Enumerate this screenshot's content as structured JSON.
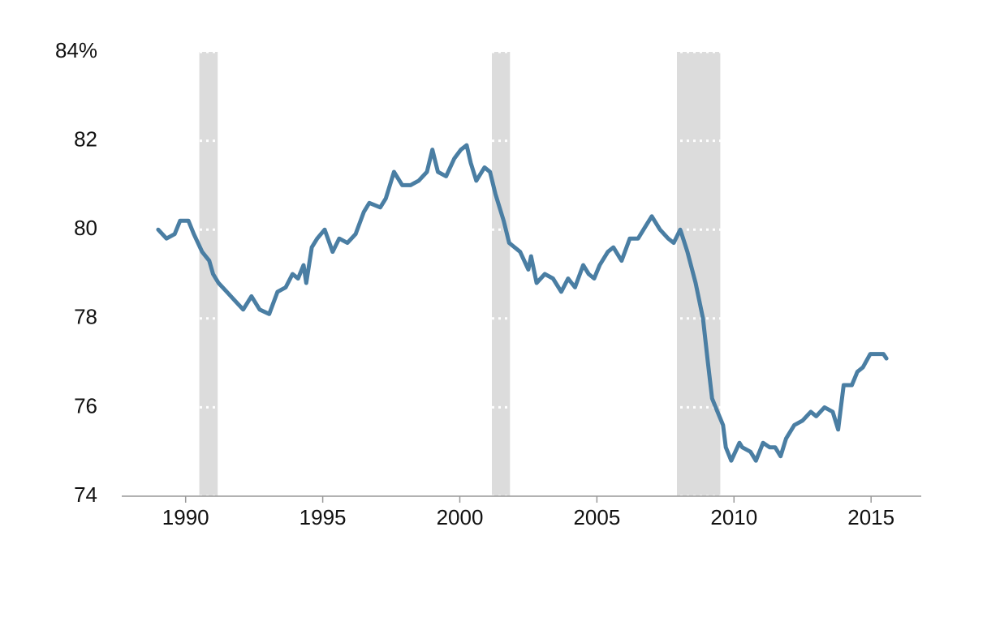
{
  "chart_data": {
    "type": "line",
    "x": [
      1989.0,
      1989.3,
      1989.6,
      1989.8,
      1990.1,
      1990.3,
      1990.6,
      1990.86,
      1991.0,
      1991.2,
      1991.5,
      1991.8,
      1992.1,
      1992.4,
      1992.7,
      1993.05,
      1993.35,
      1993.65,
      1993.9,
      1994.1,
      1994.3,
      1994.4,
      1994.6,
      1994.8,
      1995.07,
      1995.36,
      1995.6,
      1995.9,
      1996.2,
      1996.5,
      1996.7,
      1997.1,
      1997.3,
      1997.6,
      1997.9,
      1998.2,
      1998.5,
      1998.8,
      1999.0,
      1999.2,
      1999.5,
      1999.8,
      2000.04,
      2000.25,
      2000.4,
      2000.6,
      2000.9,
      2001.1,
      2001.3,
      2001.6,
      2001.8,
      2002.2,
      2002.5,
      2002.6,
      2002.8,
      2003.1,
      2003.4,
      2003.7,
      2003.95,
      2004.2,
      2004.5,
      2004.7,
      2004.9,
      2005.1,
      2005.4,
      2005.6,
      2005.9,
      2006.2,
      2006.5,
      2006.8,
      2007.0,
      2007.3,
      2007.6,
      2007.8,
      2008.04,
      2008.3,
      2008.6,
      2008.87,
      2009.05,
      2009.2,
      2009.4,
      2009.6,
      2009.7,
      2009.9,
      2010.2,
      2010.3,
      2010.6,
      2010.8,
      2011.06,
      2011.3,
      2011.5,
      2011.7,
      2011.9,
      2012.2,
      2012.5,
      2012.8,
      2013.0,
      2013.3,
      2013.6,
      2013.8,
      2014.0,
      2014.3,
      2014.5,
      2014.7,
      2014.97,
      2015.15,
      2015.45,
      2015.56
    ],
    "values": [
      80.0,
      79.8,
      79.9,
      80.2,
      80.2,
      79.9,
      79.5,
      79.3,
      79.0,
      78.8,
      78.6,
      78.4,
      78.2,
      78.5,
      78.2,
      78.1,
      78.6,
      78.7,
      79.0,
      78.9,
      79.2,
      78.8,
      79.6,
      79.8,
      80.0,
      79.5,
      79.8,
      79.7,
      79.9,
      80.4,
      80.6,
      80.5,
      80.7,
      81.3,
      81.0,
      81.0,
      81.1,
      81.3,
      81.8,
      81.3,
      81.2,
      81.6,
      81.8,
      81.9,
      81.5,
      81.1,
      81.4,
      81.3,
      80.8,
      80.2,
      79.7,
      79.5,
      79.1,
      79.4,
      78.8,
      79.0,
      78.9,
      78.6,
      78.9,
      78.7,
      79.2,
      79.0,
      78.9,
      79.2,
      79.5,
      79.6,
      79.3,
      79.8,
      79.8,
      80.1,
      80.3,
      80.0,
      79.8,
      79.7,
      80.0,
      79.5,
      78.8,
      78.0,
      77.0,
      76.2,
      75.9,
      75.6,
      75.1,
      74.8,
      75.2,
      75.1,
      75.0,
      74.8,
      75.2,
      75.1,
      75.1,
      74.9,
      75.3,
      75.6,
      75.7,
      75.9,
      75.8,
      76.0,
      75.9,
      75.5,
      76.5,
      76.5,
      76.8,
      76.9,
      77.2,
      77.2,
      77.2,
      77.1
    ],
    "color": "#4a7ea3",
    "shaded_ranges": [
      [
        1990.5,
        1991.17
      ],
      [
        2001.17,
        2001.83
      ],
      [
        2007.92,
        2009.5
      ]
    ],
    "shade_color": "#dcdcdc",
    "xlim": [
      1987.67,
      2016.83
    ],
    "xticks": [
      1990,
      1995,
      2000,
      2005,
      2010,
      2015
    ],
    "ylim": [
      74,
      84
    ],
    "yticks": [
      74,
      76,
      78,
      80,
      82,
      {
        "value": 84,
        "label": "84%"
      }
    ],
    "grid": true
  }
}
